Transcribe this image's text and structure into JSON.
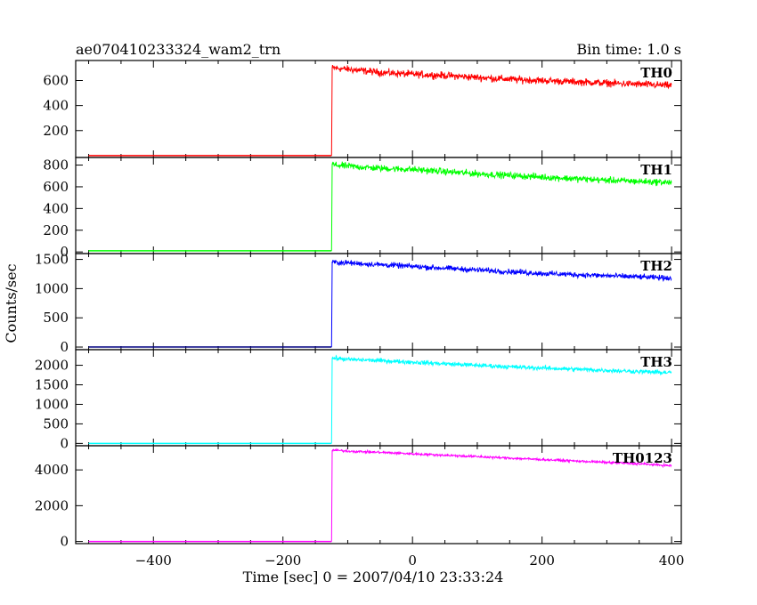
{
  "title_left": "ae070410233324_wam2_trn",
  "title_right": "Bin time: 1.0 s",
  "chart_data": {
    "type": "line",
    "xlabel": "Time [sec] 0 = 2007/04/10 23:33:24",
    "ylabel": "Counts/sec",
    "xlim": [
      -520,
      415
    ],
    "xticks": [
      -400,
      -200,
      0,
      200,
      400
    ],
    "grid": false,
    "panels": [
      {
        "name": "TH0",
        "color": "#ff0000",
        "ylim": [
          -15,
          760
        ],
        "yticks": [
          200,
          400,
          600
        ],
        "ytick_labels": [
          "200",
          "400",
          "600"
        ],
        "series": {
          "x": [
            -500,
            -125,
            -124,
            -120,
            -100,
            -50,
            0,
            50,
            100,
            150,
            200,
            250,
            300,
            350,
            400
          ],
          "y": [
            0,
            0,
            700,
            700,
            690,
            665,
            650,
            640,
            625,
            610,
            600,
            590,
            580,
            570,
            560
          ]
        },
        "noise": 28
      },
      {
        "name": "TH1",
        "color": "#00ff00",
        "ylim": [
          -15,
          870
        ],
        "yticks": [
          0,
          200,
          400,
          600,
          800
        ],
        "ytick_labels": [
          "0",
          "200",
          "400",
          "600",
          "800"
        ],
        "series": {
          "x": [
            -500,
            -125,
            -124,
            -120,
            -100,
            -50,
            0,
            50,
            100,
            150,
            200,
            250,
            300,
            350,
            400
          ],
          "y": [
            10,
            10,
            810,
            800,
            790,
            770,
            760,
            740,
            720,
            705,
            690,
            675,
            660,
            650,
            640
          ]
        },
        "noise": 30
      },
      {
        "name": "TH2",
        "color": "#0000ff",
        "ylim": [
          -45,
          1600
        ],
        "yticks": [
          0,
          500,
          1000,
          1500
        ],
        "ytick_labels": [
          "0",
          "500",
          "1000",
          "1500"
        ],
        "series": {
          "x": [
            -500,
            -125,
            -124,
            -120,
            -100,
            -50,
            0,
            50,
            100,
            150,
            200,
            250,
            300,
            350,
            400
          ],
          "y": [
            0,
            0,
            1450,
            1450,
            1440,
            1410,
            1380,
            1350,
            1320,
            1290,
            1260,
            1240,
            1220,
            1200,
            1180
          ]
        },
        "noise": 45,
        "baseline_color": "#000080"
      },
      {
        "name": "TH3",
        "color": "#00ffff",
        "ylim": [
          -60,
          2400
        ],
        "yticks": [
          0,
          500,
          1000,
          1500,
          2000
        ],
        "ytick_labels": [
          "0",
          "500",
          "1000",
          "1500",
          "2000"
        ],
        "series": {
          "x": [
            -500,
            -125,
            -124,
            -120,
            -100,
            -50,
            0,
            50,
            100,
            150,
            200,
            250,
            300,
            350,
            400
          ],
          "y": [
            0,
            0,
            2180,
            2180,
            2150,
            2120,
            2080,
            2040,
            2000,
            1960,
            1930,
            1900,
            1870,
            1840,
            1810
          ]
        },
        "noise": 55
      },
      {
        "name": "TH0123",
        "color": "#ff00ff",
        "ylim": [
          -120,
          5350
        ],
        "yticks": [
          0,
          2000,
          4000
        ],
        "ytick_labels": [
          "0",
          "2000",
          "4000"
        ],
        "series": {
          "x": [
            -500,
            -125,
            -124,
            -120,
            -100,
            -50,
            0,
            50,
            100,
            150,
            200,
            250,
            300,
            350,
            400
          ],
          "y": [
            0,
            0,
            5100,
            5100,
            5050,
            4980,
            4900,
            4820,
            4740,
            4660,
            4580,
            4500,
            4420,
            4340,
            4230
          ]
        },
        "noise": 65
      }
    ]
  }
}
